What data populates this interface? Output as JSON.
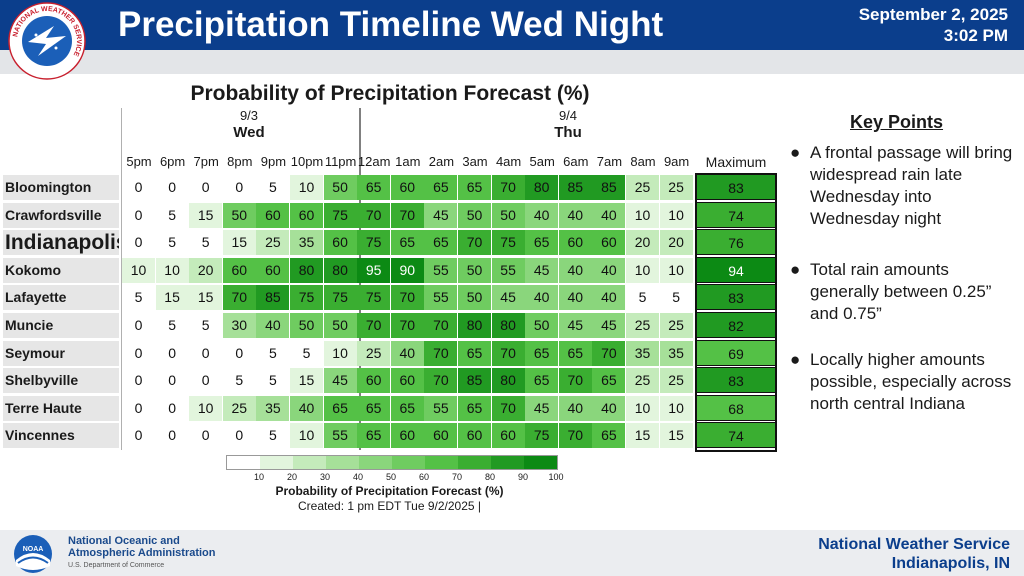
{
  "header": {
    "title": "Precipitation Timeline Wed Night",
    "date": "September 2, 2025",
    "time": "3:02 PM",
    "logo_text": "NATIONAL WEATHER SERVICE"
  },
  "table": {
    "title": "Probability of Precipitation Forecast (%)",
    "days": [
      {
        "date": "9/3",
        "name": "Wed"
      },
      {
        "date": "9/4",
        "name": "Thu"
      }
    ],
    "hours": [
      "5pm",
      "6pm",
      "7pm",
      "8pm",
      "9pm",
      "10pm",
      "11pm",
      "12am",
      "1am",
      "2am",
      "3am",
      "4am",
      "5am",
      "6am",
      "7am",
      "8am",
      "9am"
    ],
    "max_header": "Maximum",
    "rows": [
      {
        "city": "Bloomington",
        "values": [
          0,
          0,
          0,
          0,
          5,
          10,
          50,
          65,
          60,
          65,
          65,
          70,
          80,
          85,
          85,
          25,
          25
        ],
        "max": 83
      },
      {
        "city": "Crawfordsville",
        "values": [
          0,
          5,
          15,
          50,
          60,
          60,
          75,
          70,
          70,
          45,
          50,
          50,
          40,
          40,
          40,
          10,
          10
        ],
        "max": 74
      },
      {
        "city": "Indianapolis",
        "values": [
          0,
          5,
          5,
          15,
          25,
          35,
          60,
          75,
          65,
          65,
          70,
          75,
          65,
          60,
          60,
          20,
          20
        ],
        "max": 76
      },
      {
        "city": "Kokomo",
        "values": [
          10,
          10,
          20,
          60,
          60,
          80,
          80,
          95,
          90,
          55,
          50,
          55,
          45,
          40,
          40,
          10,
          10
        ],
        "max": 94
      },
      {
        "city": "Lafayette",
        "values": [
          5,
          15,
          15,
          70,
          85,
          75,
          75,
          75,
          70,
          55,
          50,
          45,
          40,
          40,
          40,
          5,
          5
        ],
        "max": 83
      },
      {
        "city": "Muncie",
        "values": [
          0,
          5,
          5,
          30,
          40,
          50,
          50,
          70,
          70,
          70,
          80,
          80,
          50,
          45,
          45,
          25,
          25
        ],
        "max": 82
      },
      {
        "city": "Seymour",
        "values": [
          0,
          0,
          0,
          0,
          5,
          5,
          10,
          25,
          40,
          70,
          65,
          70,
          65,
          65,
          70,
          35,
          35
        ],
        "max": 69
      },
      {
        "city": "Shelbyville",
        "values": [
          0,
          0,
          0,
          5,
          5,
          15,
          45,
          60,
          60,
          70,
          85,
          80,
          65,
          70,
          65,
          25,
          25
        ],
        "max": 83
      },
      {
        "city": "Terre Haute",
        "values": [
          0,
          0,
          10,
          25,
          35,
          40,
          65,
          65,
          65,
          55,
          65,
          70,
          45,
          40,
          40,
          10,
          10
        ],
        "max": 68
      },
      {
        "city": "Vincennes",
        "values": [
          0,
          0,
          0,
          0,
          5,
          10,
          55,
          65,
          60,
          60,
          60,
          60,
          75,
          70,
          65,
          15,
          15
        ],
        "max": 74
      }
    ]
  },
  "legend": {
    "ticks": [
      "10",
      "20",
      "30",
      "40",
      "50",
      "60",
      "70",
      "80",
      "90",
      "100"
    ],
    "colors": [
      "#ffffff",
      "#e2f5dd",
      "#c4ebbb",
      "#a6e099",
      "#8ad67c",
      "#6fcc60",
      "#54c146",
      "#3aae31",
      "#219a22",
      "#0c8a14"
    ],
    "title": "Probability of Precipitation Forecast (%)",
    "created": "Created: 1 pm EDT Tue 9/2/2025  |"
  },
  "key_points": {
    "title": "Key Points",
    "bullet": "●",
    "items": [
      "A frontal passage will bring widespread rain late Wednesday into Wednesday night",
      "Total rain amounts generally between 0.25” and 0.75”",
      "Locally higher amounts possible, especially across north central Indiana"
    ]
  },
  "footer": {
    "noaa_line1": "National Oceanic and",
    "noaa_line2": "Atmospheric Administration",
    "noaa_line3": "U.S. Department of Commerce",
    "noaa_logo_text": "NOAA",
    "nws_line1": "National Weather Service",
    "nws_line2": "Indianapolis, IN"
  }
}
